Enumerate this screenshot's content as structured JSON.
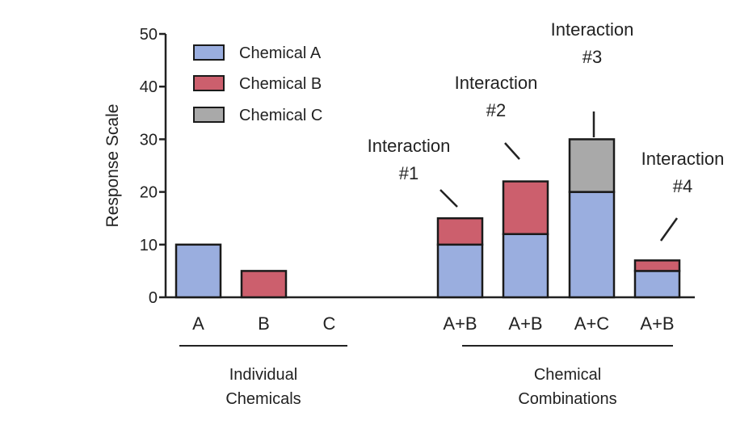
{
  "chart_data": {
    "type": "bar",
    "stacked": true,
    "ylabel": "Response Scale",
    "ylim": [
      0,
      50
    ],
    "yticks": [
      0,
      10,
      20,
      30,
      40,
      50
    ],
    "grid": false,
    "legend_position": "top-left",
    "colors": {
      "Chemical A": "#9aaedf",
      "Chemical B": "#cc5f6d",
      "Chemical C": "#a9a9a9"
    },
    "series": [
      {
        "name": "Chemical A"
      },
      {
        "name": "Chemical B"
      },
      {
        "name": "Chemical C"
      }
    ],
    "categories": [
      "A",
      "B",
      "C",
      "A+B",
      "A+B",
      "A+C",
      "A+B"
    ],
    "bars": [
      {
        "category": "A",
        "segments": [
          {
            "series": "Chemical A",
            "value": 10
          }
        ]
      },
      {
        "category": "B",
        "segments": [
          {
            "series": "Chemical B",
            "value": 5
          }
        ]
      },
      {
        "category": "C",
        "segments": []
      },
      {
        "category": "A+B",
        "segments": [
          {
            "series": "Chemical A",
            "value": 10
          },
          {
            "series": "Chemical B",
            "value": 5
          }
        ],
        "annotation": [
          "Interaction",
          "#1"
        ]
      },
      {
        "category": "A+B",
        "segments": [
          {
            "series": "Chemical A",
            "value": 12
          },
          {
            "series": "Chemical B",
            "value": 10
          }
        ],
        "annotation": [
          "Interaction",
          "#2"
        ]
      },
      {
        "category": "A+C",
        "segments": [
          {
            "series": "Chemical A",
            "value": 20
          },
          {
            "series": "Chemical C",
            "value": 10
          }
        ],
        "annotation": [
          "Interaction",
          "#3"
        ]
      },
      {
        "category": "A+B",
        "segments": [
          {
            "series": "Chemical A",
            "value": 5
          },
          {
            "series": "Chemical B",
            "value": 2
          }
        ],
        "annotation": [
          "Interaction",
          "#4"
        ]
      }
    ],
    "groups": [
      {
        "label": [
          "Individual",
          "Chemicals"
        ]
      },
      {
        "label": [
          "Chemical",
          "Combinations"
        ]
      }
    ]
  }
}
